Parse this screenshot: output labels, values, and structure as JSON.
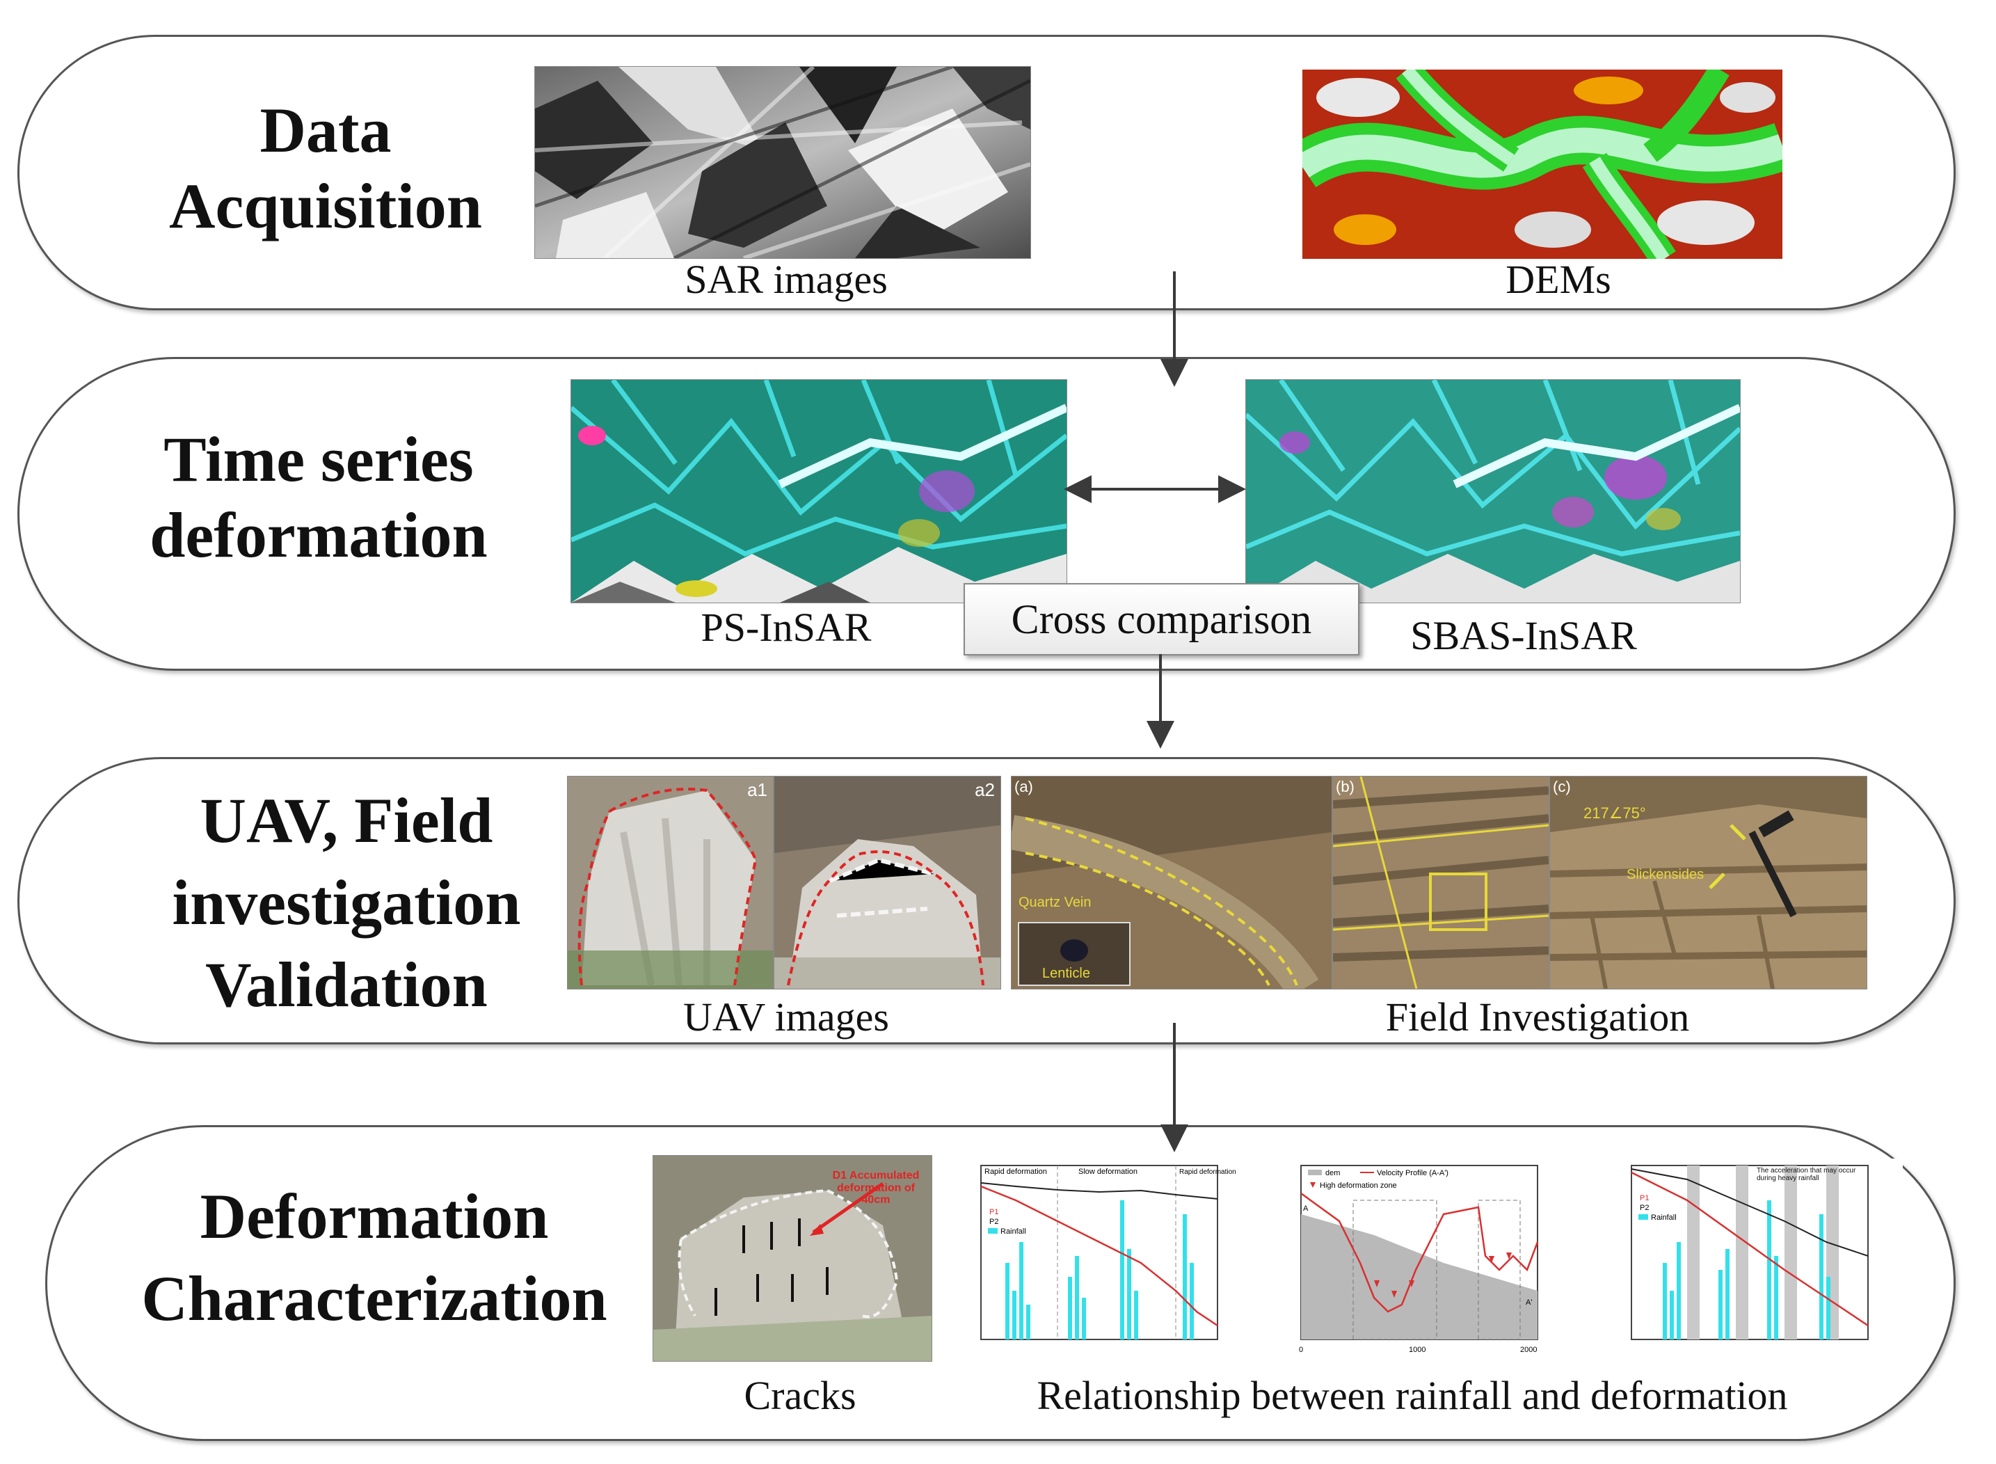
{
  "stages": [
    {
      "title_lines": [
        "Data",
        "Acquisition"
      ],
      "images": [
        {
          "caption": "SAR images",
          "icon": "sar-image"
        },
        {
          "caption": "DEMs",
          "icon": "dem-image"
        }
      ]
    },
    {
      "title_lines": [
        "Time series",
        "deformation"
      ],
      "images": [
        {
          "caption": "PS-InSAR",
          "icon": "ps-insar-map"
        },
        {
          "caption": "SBAS-InSAR",
          "icon": "sbas-insar-map"
        }
      ],
      "comparison_label": "Cross comparison"
    },
    {
      "title_lines": [
        "UAV, Field",
        "investigation",
        "Validation"
      ],
      "images": [
        {
          "caption": "UAV images",
          "panel_labels": [
            "a1",
            "a2"
          ]
        },
        {
          "caption": "Field Investigation",
          "panel_labels": [
            "(a)",
            "(b)",
            "(c)"
          ],
          "annotations": [
            "Quartz Vein",
            "Lenticle",
            "Slickensides",
            "217∠75°"
          ]
        }
      ]
    },
    {
      "title_lines": [
        "Deformation",
        "Characterization"
      ],
      "images": [
        {
          "caption": "Cracks",
          "annotation": "D1 Accumulated deformation of 40cm"
        },
        {
          "caption": "Relationship between rainfall and deformation"
        }
      ],
      "mini_charts": [
        {
          "legend": [
            "P1",
            "P2",
            "Rainfall"
          ],
          "notes": [
            "Rapid deformation",
            "Slow deformation",
            "Rapid deformation"
          ]
        },
        {
          "legend": [
            "dem",
            "Velocity Profile (A-A')",
            "High deformation zone"
          ],
          "axis_ticks": [
            "0",
            "1000",
            "2000"
          ],
          "profile_ends": [
            "A",
            "A'"
          ]
        },
        {
          "legend": [
            "P1",
            "P2",
            "Rainfall"
          ],
          "notes": [
            "The acceleration that may occur during heavy rainfall"
          ]
        }
      ]
    }
  ],
  "colors": {
    "border": "#555555",
    "arrow": "#3a3a3a",
    "dashed_outline": "#d02020",
    "annotation_yellow": "#e8d83a",
    "rainfall_bar": "#33e0ea",
    "deformation_line": "#d93030"
  }
}
